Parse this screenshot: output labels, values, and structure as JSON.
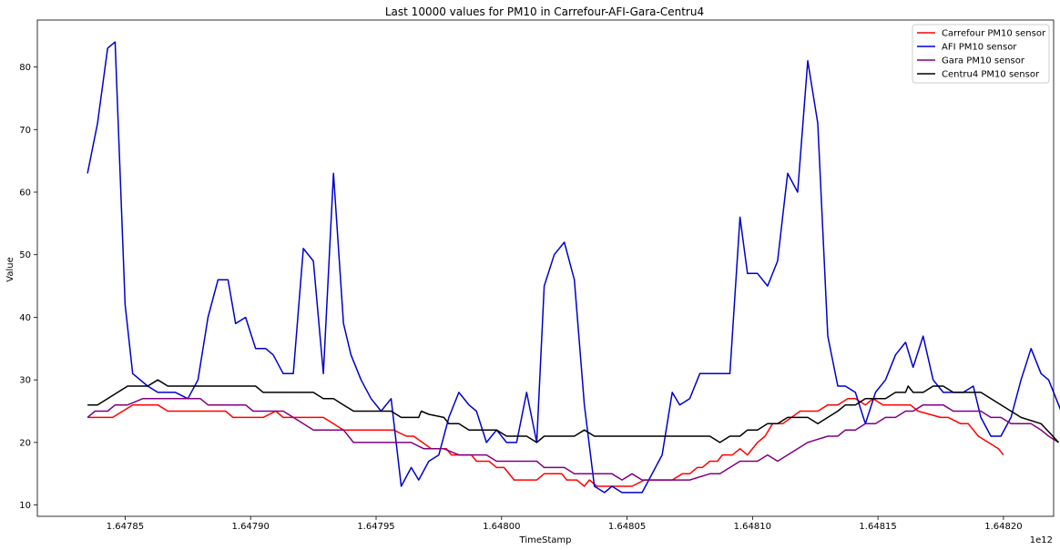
{
  "chart_data": {
    "type": "line",
    "title": "Last 10000 values for PM10 in Carrefour-AFI-Gara-Centru4",
    "xlabel": "TimeStamp",
    "ylabel": "Value",
    "x_offset_label": "1e12",
    "xlim": [
      1.647815,
      1.64822
    ],
    "ylim": [
      8.2,
      87.5
    ],
    "xticks": [
      1.64785,
      1.6479,
      1.64795,
      1.648,
      1.64805,
      1.6481,
      1.64815,
      1.6482
    ],
    "xtick_labels": [
      "1.64785",
      "1.64790",
      "1.64795",
      "1.64800",
      "1.64805",
      "1.64810",
      "1.64815",
      "1.64820"
    ],
    "yticks": [
      10,
      20,
      30,
      40,
      50,
      60,
      70,
      80
    ],
    "ytick_labels": [
      "10",
      "20",
      "30",
      "40",
      "50",
      "60",
      "70",
      "80"
    ],
    "legend_position": "top-right",
    "series": [
      {
        "name": "Carrefour PM10 sensor",
        "color": "#ff0000",
        "points": [
          [
            1.647835,
            24
          ],
          [
            1.647845,
            24
          ],
          [
            1.647853,
            26
          ],
          [
            1.647863,
            26
          ],
          [
            1.647867,
            25
          ],
          [
            1.64789,
            25
          ],
          [
            1.647893,
            24
          ],
          [
            1.647905,
            24
          ],
          [
            1.64791,
            25
          ],
          [
            1.647913,
            24
          ],
          [
            1.647929,
            24
          ],
          [
            1.647937,
            22
          ],
          [
            1.647957,
            22
          ],
          [
            1.647962,
            21
          ],
          [
            1.647965,
            21
          ],
          [
            1.647972,
            19
          ],
          [
            1.647978,
            19
          ],
          [
            1.64798,
            18
          ],
          [
            1.647988,
            18
          ],
          [
            1.64799,
            17
          ],
          [
            1.647995,
            17
          ],
          [
            1.647998,
            16
          ],
          [
            1.648001,
            16
          ],
          [
            1.648005,
            14
          ],
          [
            1.648014,
            14
          ],
          [
            1.648017,
            15
          ],
          [
            1.648024,
            15
          ],
          [
            1.648026,
            14
          ],
          [
            1.64803,
            14
          ],
          [
            1.648033,
            13
          ],
          [
            1.648035,
            14
          ],
          [
            1.648038,
            13
          ],
          [
            1.648052,
            13
          ],
          [
            1.648057,
            14
          ],
          [
            1.648068,
            14
          ],
          [
            1.648072,
            15
          ],
          [
            1.648075,
            15
          ],
          [
            1.648078,
            16
          ],
          [
            1.64808,
            16
          ],
          [
            1.648083,
            17
          ],
          [
            1.648086,
            17
          ],
          [
            1.648088,
            18
          ],
          [
            1.648092,
            18
          ],
          [
            1.648095,
            19
          ],
          [
            1.648098,
            18
          ],
          [
            1.648102,
            20
          ],
          [
            1.648105,
            21
          ],
          [
            1.648108,
            23
          ],
          [
            1.648112,
            23
          ],
          [
            1.648119,
            25
          ],
          [
            1.648126,
            25
          ],
          [
            1.64813,
            26
          ],
          [
            1.648134,
            26
          ],
          [
            1.648138,
            27
          ],
          [
            1.648141,
            27
          ],
          [
            1.648145,
            26
          ],
          [
            1.648148,
            27
          ],
          [
            1.648152,
            26
          ],
          [
            1.648163,
            26
          ],
          [
            1.648166,
            25
          ],
          [
            1.648175,
            24
          ],
          [
            1.648178,
            24
          ],
          [
            1.648183,
            23
          ],
          [
            1.648186,
            23
          ],
          [
            1.64819,
            21
          ],
          [
            1.648198,
            19
          ],
          [
            1.6482,
            18
          ]
        ]
      },
      {
        "name": "AFI PM10 sensor",
        "color": "#0000cc",
        "points": [
          [
            1.647835,
            63
          ],
          [
            1.647839,
            71
          ],
          [
            1.647843,
            83
          ],
          [
            1.647846,
            84
          ],
          [
            1.64785,
            42
          ],
          [
            1.647853,
            31
          ],
          [
            1.647859,
            29
          ],
          [
            1.647863,
            28
          ],
          [
            1.64787,
            28
          ],
          [
            1.647875,
            27
          ],
          [
            1.647879,
            30
          ],
          [
            1.647883,
            40
          ],
          [
            1.647887,
            46
          ],
          [
            1.647891,
            46
          ],
          [
            1.647894,
            39
          ],
          [
            1.647898,
            40
          ],
          [
            1.647902,
            35
          ],
          [
            1.647906,
            35
          ],
          [
            1.647909,
            34
          ],
          [
            1.647913,
            31
          ],
          [
            1.647917,
            31
          ],
          [
            1.647921,
            51
          ],
          [
            1.647925,
            49
          ],
          [
            1.647929,
            31
          ],
          [
            1.647933,
            63
          ],
          [
            1.647937,
            39
          ],
          [
            1.64794,
            34
          ],
          [
            1.647944,
            30
          ],
          [
            1.647948,
            27
          ],
          [
            1.647952,
            25
          ],
          [
            1.647956,
            27
          ],
          [
            1.64796,
            13
          ],
          [
            1.647964,
            16
          ],
          [
            1.647967,
            14
          ],
          [
            1.647971,
            17
          ],
          [
            1.647975,
            18
          ],
          [
            1.647979,
            24
          ],
          [
            1.647983,
            28
          ],
          [
            1.647987,
            26
          ],
          [
            1.64799,
            25
          ],
          [
            1.647994,
            20
          ],
          [
            1.647998,
            22
          ],
          [
            1.648002,
            20
          ],
          [
            1.648006,
            20
          ],
          [
            1.64801,
            28
          ],
          [
            1.648014,
            20
          ],
          [
            1.648017,
            45
          ],
          [
            1.648021,
            50
          ],
          [
            1.648025,
            52
          ],
          [
            1.648029,
            46
          ],
          [
            1.648033,
            26
          ],
          [
            1.648037,
            13
          ],
          [
            1.648041,
            12
          ],
          [
            1.648044,
            13
          ],
          [
            1.648048,
            12
          ],
          [
            1.648052,
            12
          ],
          [
            1.648056,
            12
          ],
          [
            1.64806,
            15
          ],
          [
            1.648064,
            18
          ],
          [
            1.648068,
            28
          ],
          [
            1.648071,
            26
          ],
          [
            1.648075,
            27
          ],
          [
            1.648079,
            31
          ],
          [
            1.648083,
            31
          ],
          [
            1.648087,
            31
          ],
          [
            1.648091,
            31
          ],
          [
            1.648095,
            56
          ],
          [
            1.648098,
            47
          ],
          [
            1.648102,
            47
          ],
          [
            1.648106,
            45
          ],
          [
            1.64811,
            49
          ],
          [
            1.648114,
            63
          ],
          [
            1.648118,
            60
          ],
          [
            1.648122,
            81
          ],
          [
            1.648126,
            71
          ],
          [
            1.64813,
            37
          ],
          [
            1.648134,
            29
          ],
          [
            1.648137,
            29
          ],
          [
            1.648141,
            28
          ],
          [
            1.648145,
            23
          ],
          [
            1.648149,
            28
          ],
          [
            1.648153,
            30
          ],
          [
            1.648157,
            34
          ],
          [
            1.648161,
            36
          ],
          [
            1.648164,
            32
          ],
          [
            1.648168,
            37
          ],
          [
            1.648172,
            30
          ],
          [
            1.648176,
            28
          ],
          [
            1.64818,
            28
          ],
          [
            1.648184,
            28
          ],
          [
            1.648188,
            29
          ],
          [
            1.648191,
            24
          ],
          [
            1.648195,
            21
          ],
          [
            1.648199,
            21
          ],
          [
            1.648203,
            24
          ],
          [
            1.648207,
            30
          ],
          [
            1.648211,
            35
          ],
          [
            1.648215,
            31
          ],
          [
            1.648218,
            30
          ],
          [
            1.648222,
            26
          ],
          [
            1.648226,
            22
          ]
        ]
      },
      {
        "name": "Gara PM10 sensor",
        "color": "#800080",
        "points": [
          [
            1.647835,
            24
          ],
          [
            1.647838,
            25
          ],
          [
            1.647843,
            25
          ],
          [
            1.647846,
            26
          ],
          [
            1.647851,
            26
          ],
          [
            1.647857,
            27
          ],
          [
            1.64788,
            27
          ],
          [
            1.647883,
            26
          ],
          [
            1.647898,
            26
          ],
          [
            1.647901,
            25
          ],
          [
            1.647913,
            25
          ],
          [
            1.647917,
            24
          ],
          [
            1.647925,
            22
          ],
          [
            1.647937,
            22
          ],
          [
            1.647941,
            20
          ],
          [
            1.647964,
            20
          ],
          [
            1.647969,
            19
          ],
          [
            1.647977,
            19
          ],
          [
            1.647983,
            18
          ],
          [
            1.647994,
            18
          ],
          [
            1.647998,
            17
          ],
          [
            1.648014,
            17
          ],
          [
            1.648017,
            16
          ],
          [
            1.648025,
            16
          ],
          [
            1.648029,
            15
          ],
          [
            1.648044,
            15
          ],
          [
            1.648048,
            14
          ],
          [
            1.648052,
            15
          ],
          [
            1.648056,
            14
          ],
          [
            1.648064,
            14
          ],
          [
            1.648075,
            14
          ],
          [
            1.648083,
            15
          ],
          [
            1.648087,
            15
          ],
          [
            1.648091,
            16
          ],
          [
            1.648095,
            17
          ],
          [
            1.648102,
            17
          ],
          [
            1.648106,
            18
          ],
          [
            1.64811,
            17
          ],
          [
            1.648114,
            18
          ],
          [
            1.648122,
            20
          ],
          [
            1.64813,
            21
          ],
          [
            1.648134,
            21
          ],
          [
            1.648137,
            22
          ],
          [
            1.648141,
            22
          ],
          [
            1.648145,
            23
          ],
          [
            1.648149,
            23
          ],
          [
            1.648153,
            24
          ],
          [
            1.648157,
            24
          ],
          [
            1.648161,
            25
          ],
          [
            1.648164,
            25
          ],
          [
            1.648168,
            26
          ],
          [
            1.648176,
            26
          ],
          [
            1.64818,
            25
          ],
          [
            1.648191,
            25
          ],
          [
            1.648195,
            24
          ],
          [
            1.648199,
            24
          ],
          [
            1.648203,
            23
          ],
          [
            1.648211,
            23
          ],
          [
            1.648215,
            22
          ],
          [
            1.648218,
            21
          ],
          [
            1.648222,
            20
          ]
        ]
      },
      {
        "name": "Centru4 PM10 sensor",
        "color": "#000000",
        "points": [
          [
            1.647835,
            26
          ],
          [
            1.647839,
            26
          ],
          [
            1.647843,
            27
          ],
          [
            1.647851,
            29
          ],
          [
            1.647859,
            29
          ],
          [
            1.647863,
            30
          ],
          [
            1.647867,
            29
          ],
          [
            1.647902,
            29
          ],
          [
            1.647905,
            28
          ],
          [
            1.647925,
            28
          ],
          [
            1.647929,
            27
          ],
          [
            1.647933,
            27
          ],
          [
            1.647937,
            26
          ],
          [
            1.647941,
            25
          ],
          [
            1.647956,
            25
          ],
          [
            1.64796,
            24
          ],
          [
            1.647967,
            24
          ],
          [
            1.647968,
            25
          ],
          [
            1.647971,
            24.5
          ],
          [
            1.647977,
            24
          ],
          [
            1.647979,
            23
          ],
          [
            1.647983,
            23
          ],
          [
            1.647987,
            22
          ],
          [
            1.647998,
            22
          ],
          [
            1.648002,
            21
          ],
          [
            1.64801,
            21
          ],
          [
            1.648014,
            20
          ],
          [
            1.648017,
            21
          ],
          [
            1.648029,
            21
          ],
          [
            1.648033,
            22
          ],
          [
            1.648037,
            21
          ],
          [
            1.648064,
            21
          ],
          [
            1.648083,
            21
          ],
          [
            1.648087,
            20
          ],
          [
            1.648091,
            21
          ],
          [
            1.648095,
            21
          ],
          [
            1.648098,
            22
          ],
          [
            1.648102,
            22
          ],
          [
            1.648106,
            23
          ],
          [
            1.64811,
            23
          ],
          [
            1.648114,
            24
          ],
          [
            1.648122,
            24
          ],
          [
            1.648126,
            23
          ],
          [
            1.64813,
            24
          ],
          [
            1.648134,
            25
          ],
          [
            1.648137,
            26
          ],
          [
            1.648141,
            26
          ],
          [
            1.648145,
            27
          ],
          [
            1.648149,
            27
          ],
          [
            1.648153,
            27
          ],
          [
            1.648157,
            28
          ],
          [
            1.648161,
            28
          ],
          [
            1.648162,
            29
          ],
          [
            1.648164,
            28
          ],
          [
            1.648168,
            28
          ],
          [
            1.648172,
            29
          ],
          [
            1.648176,
            29
          ],
          [
            1.64818,
            28
          ],
          [
            1.648191,
            28
          ],
          [
            1.648195,
            27
          ],
          [
            1.648207,
            24
          ],
          [
            1.648215,
            23
          ],
          [
            1.648222,
            20
          ]
        ]
      }
    ]
  }
}
